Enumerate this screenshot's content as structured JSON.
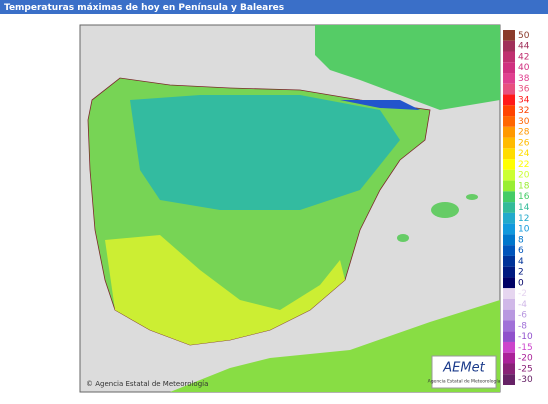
{
  "header": {
    "title": "Temperaturas máximas de hoy en Península y Baleares"
  },
  "map": {
    "credit": "© Agencia Estatal de Meteorología"
  },
  "logo": {
    "name": "AEMet",
    "subtitle": "Agencia Estatal de Meteorología"
  },
  "legend": {
    "labels": [
      50,
      44,
      42,
      40,
      38,
      36,
      34,
      32,
      30,
      28,
      26,
      24,
      22,
      20,
      18,
      16,
      14,
      12,
      10,
      8,
      6,
      4,
      2,
      0,
      -2,
      -4,
      -6,
      -8,
      -10,
      -15,
      -20,
      -25,
      -30
    ],
    "colors": [
      "#8b3a2a",
      "#a0305a",
      "#c03070",
      "#d03080",
      "#e04090",
      "#e85080",
      "#ff1a1a",
      "#ff4400",
      "#ff6600",
      "#ff9900",
      "#ffbb00",
      "#ffdd00",
      "#ffff00",
      "#ccff33",
      "#99ee33",
      "#44cc66",
      "#33bb99",
      "#22aacc",
      "#1199dd",
      "#0077cc",
      "#0055bb",
      "#003399",
      "#001a80",
      "#000066",
      "#e6d6f0",
      "#d0b8e8",
      "#b898e0",
      "#a070d8",
      "#9050cc",
      "#cc44cc",
      "#aa2299",
      "#882277",
      "#662266"
    ]
  }
}
